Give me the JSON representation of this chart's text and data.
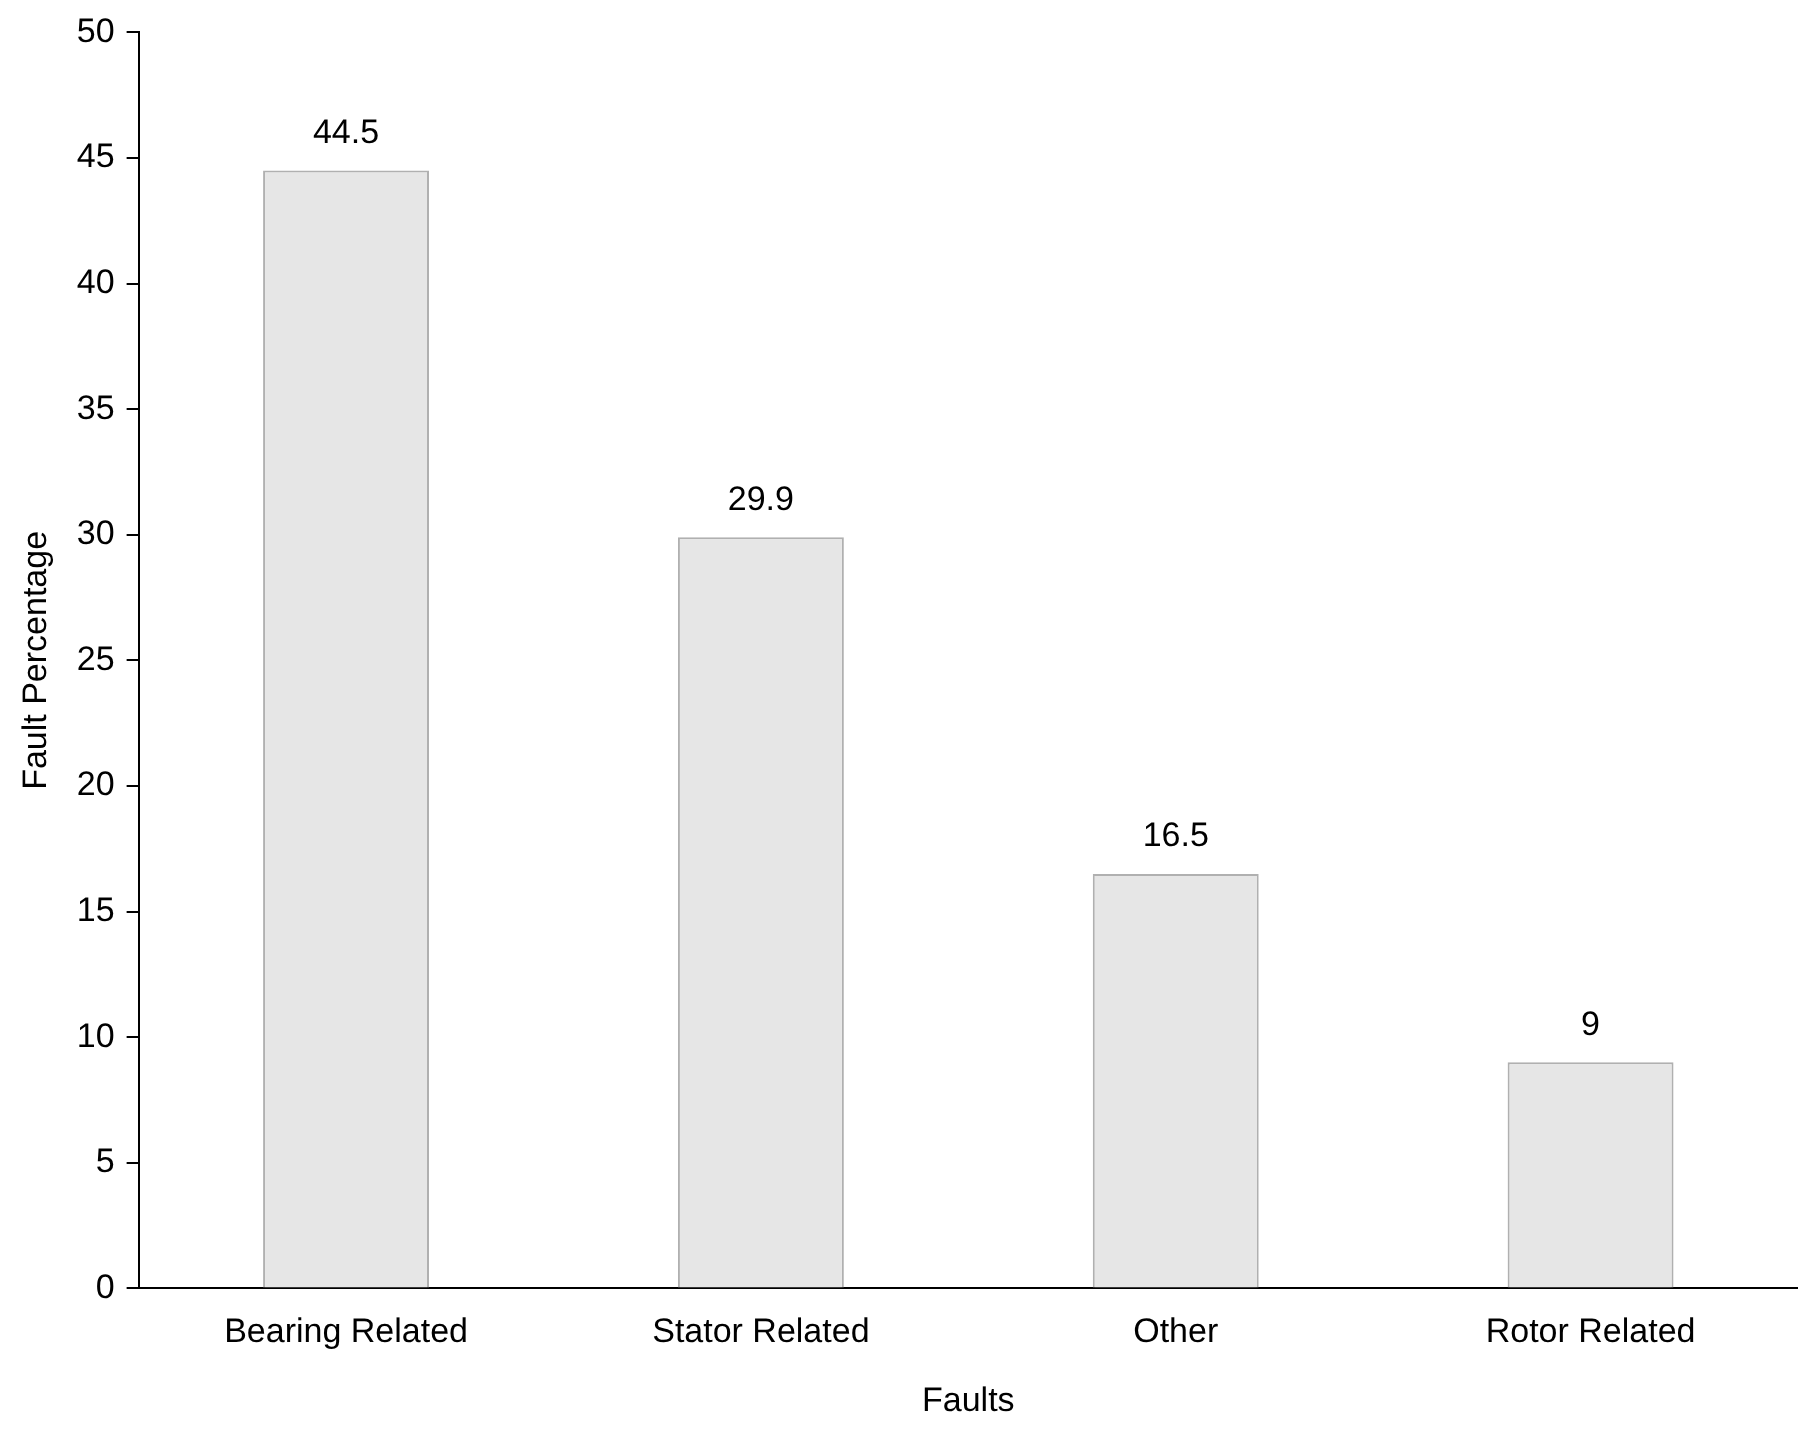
{
  "chart_data": {
    "type": "bar",
    "xlabel": "Faults",
    "ylabel": "Fault Percentage",
    "categories": [
      "Bearing Related",
      "Stator Related",
      "Other",
      "Rotor Related"
    ],
    "values": [
      44.5,
      29.9,
      16.5,
      9
    ],
    "color": "#e6e6e6",
    "ylim": [
      0,
      50
    ],
    "yticks": [
      0,
      5,
      10,
      15,
      20,
      25,
      30,
      35,
      40,
      45,
      50
    ],
    "grid": false,
    "data_labels": true
  }
}
